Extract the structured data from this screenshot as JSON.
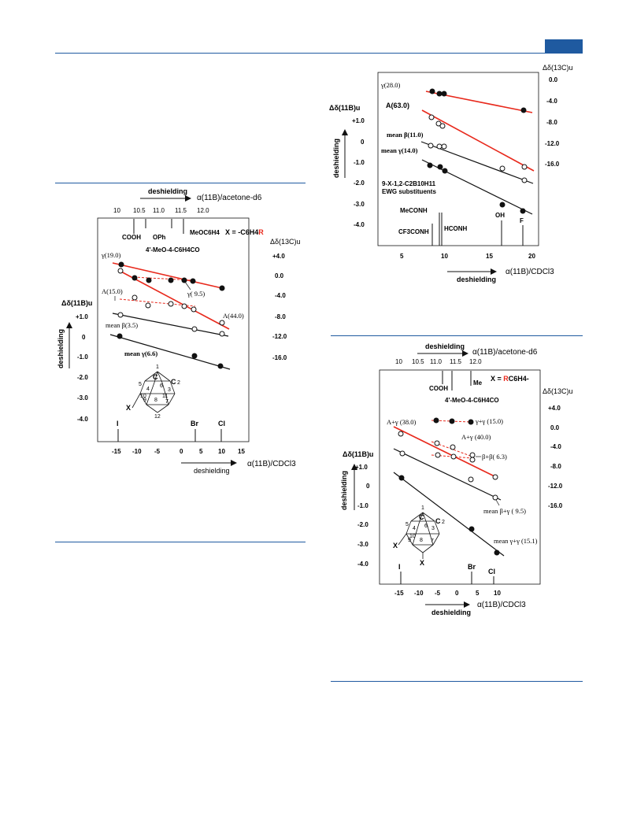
{
  "colors": {
    "accent": "#1f5aa0",
    "red": "#e8291c",
    "black": "#111111"
  },
  "chart_data": [
    {
      "type": "scatter",
      "id": "left",
      "top_axis": {
        "title": "deshielding",
        "label": "α(11B)/acetone-d6",
        "ticks": [
          "10",
          "10.5",
          "11.0",
          "11.5",
          "12.0"
        ]
      },
      "top_markers": [
        "COOH",
        "OPh",
        "4'-MeO-4-C6H4CO",
        "MeOC6H4"
      ],
      "formula": "X = -C6H4",
      "formula_r": "R",
      "xlabel": "α(11B)/CDCl3",
      "xlabel_note": "deshielding",
      "xticks": [
        "-15",
        "-10",
        "-5",
        "0",
        "5",
        "10",
        "15"
      ],
      "ylabel": "Δδ(11B)u",
      "ylabel_side": "deshielding",
      "yticks": [
        "+1.0",
        "0",
        "-1.0",
        "-2.0",
        "-3.0",
        "-4.0"
      ],
      "y2label": "Δδ(13C)u",
      "y2ticks": [
        "+4.0",
        "0.0",
        "-4.0",
        "-8.0",
        "-12.0",
        "-16.0"
      ],
      "bottom_markers": [
        "I",
        "Br",
        "Cl"
      ],
      "series_labels": [
        "γ(19.0)",
        "γ( 9.5)",
        "A(15.0)",
        "A(44.0)",
        "mean β(3.5)",
        "mean γ(6.6)"
      ],
      "molecule_labels": [
        "1",
        "C",
        "C",
        "2",
        "3",
        "4",
        "5",
        "6",
        "7",
        "8",
        "9",
        "10",
        "11",
        "12",
        "X"
      ]
    },
    {
      "type": "scatter",
      "id": "right-top",
      "y2label": "Δδ(13C)u",
      "y2ticks": [
        "0.0",
        "-4.0",
        "-8.0",
        "-12.0",
        "-16.0"
      ],
      "ylabel": "Δδ(11B)u",
      "ylabel_side": "deshielding",
      "yticks": [
        "+1.0",
        "0",
        "-1.0",
        "-2.0",
        "-3.0",
        "-4.0"
      ],
      "series_labels": [
        "γ(28.0)",
        "A(63.0)",
        "mean β(11.0)",
        "mean γ(14.0)"
      ],
      "compound": [
        "9-X-1,2-C2B10H11",
        "EWG substituents"
      ],
      "bottom_markers": [
        "MeCONH",
        "CF3CONH",
        "HCONH",
        "OH",
        "F"
      ],
      "xticks": [
        "5",
        "10",
        "15",
        "20"
      ],
      "xlabel": "α(11B)/CDCl3",
      "xlabel_note": "deshielding"
    },
    {
      "type": "scatter",
      "id": "right-bottom",
      "top_axis": {
        "title": "deshielding",
        "label": "α(11B)/acetone-d6",
        "ticks": [
          "10",
          "10.5",
          "11.0",
          "11.5",
          "12.0"
        ]
      },
      "top_markers": [
        "COOH",
        "4'-MeO-4-C6H4CO",
        "Me"
      ],
      "formula": "X = ",
      "formula_r": "R",
      "formula_tail": "C6H4-",
      "y2label": "Δδ(13C)u",
      "y2ticks": [
        "+4.0",
        "0.0",
        "-4.0",
        "-8.0",
        "-12.0",
        "-16.0"
      ],
      "ylabel": "Δδ(11B)u",
      "ylabel_side": "deshielding",
      "yticks": [
        "+1.0",
        "0",
        "-1.0",
        "-2.0",
        "-3.0",
        "-4.0"
      ],
      "series_labels": [
        "A+γ (38.0)",
        "γ+γ (15.0)",
        "A+γ (40.0)",
        "β+β( 6.3)",
        "mean β+γ ( 9.5)",
        "mean γ+γ (15.1)"
      ],
      "molecule_labels": [
        "1",
        "C",
        "C",
        "2",
        "5",
        "4",
        "3",
        "6",
        "7",
        "8",
        "9",
        "10",
        "X",
        "X"
      ],
      "bottom_markers": [
        "I",
        "Br",
        "Cl"
      ],
      "xticks": [
        "-15",
        "-10",
        "-5",
        "0",
        "5",
        "10"
      ],
      "xlabel": "α(11B)/CDCl3",
      "xlabel_note": "deshielding"
    }
  ]
}
